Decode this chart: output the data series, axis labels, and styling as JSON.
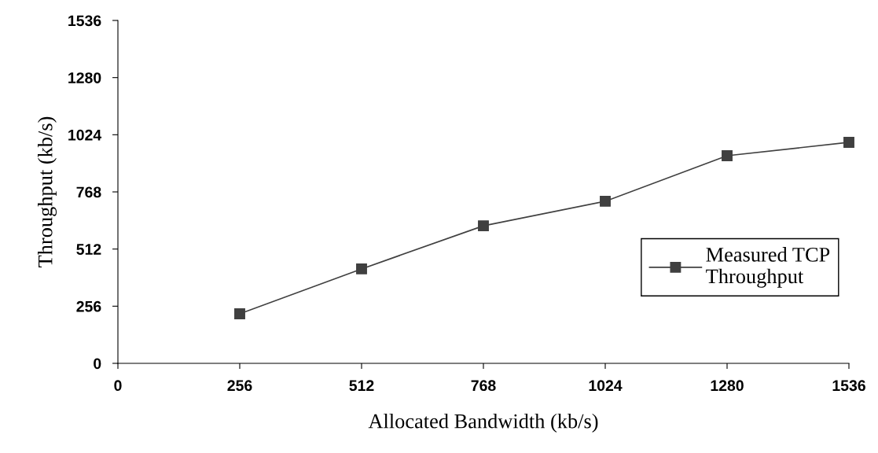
{
  "chart_data": {
    "type": "line",
    "xlabel": "Allocated Bandwidth (kb/s)",
    "ylabel": "Throughput (kb/s)",
    "x": [
      256,
      512,
      768,
      1024,
      1280,
      1536
    ],
    "series": [
      {
        "name": "Measured TCP\nThroughput",
        "color": "#404040",
        "values": [
          222,
          423,
          616,
          726,
          930,
          990
        ]
      }
    ],
    "xlim": [
      0,
      1536
    ],
    "ylim": [
      0,
      1536
    ],
    "xticks": [
      0,
      256,
      512,
      768,
      1024,
      1280,
      1536
    ],
    "yticks": [
      0,
      256,
      512,
      768,
      1024,
      1280,
      1536
    ],
    "grid": false,
    "legend": "right",
    "marker": "square",
    "line_style": "solid"
  }
}
